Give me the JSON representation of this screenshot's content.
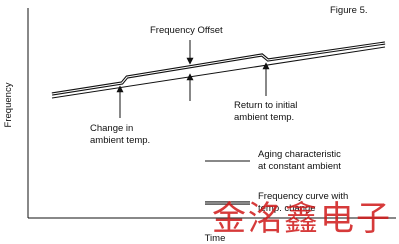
{
  "figure_label": "Figure 5.",
  "axes": {
    "y_label": "Frequency",
    "x_label": "Time"
  },
  "annotations": {
    "offset": "Frequency Offset",
    "change": [
      "Change in",
      "ambient temp."
    ],
    "return": [
      "Return to initial",
      "ambient temp."
    ]
  },
  "legend": {
    "aging": [
      "Aging characteristic",
      "at constant ambient"
    ],
    "curve": [
      "Frequency curve with",
      "temp. change"
    ]
  },
  "watermark": "金洺鑫电子"
}
